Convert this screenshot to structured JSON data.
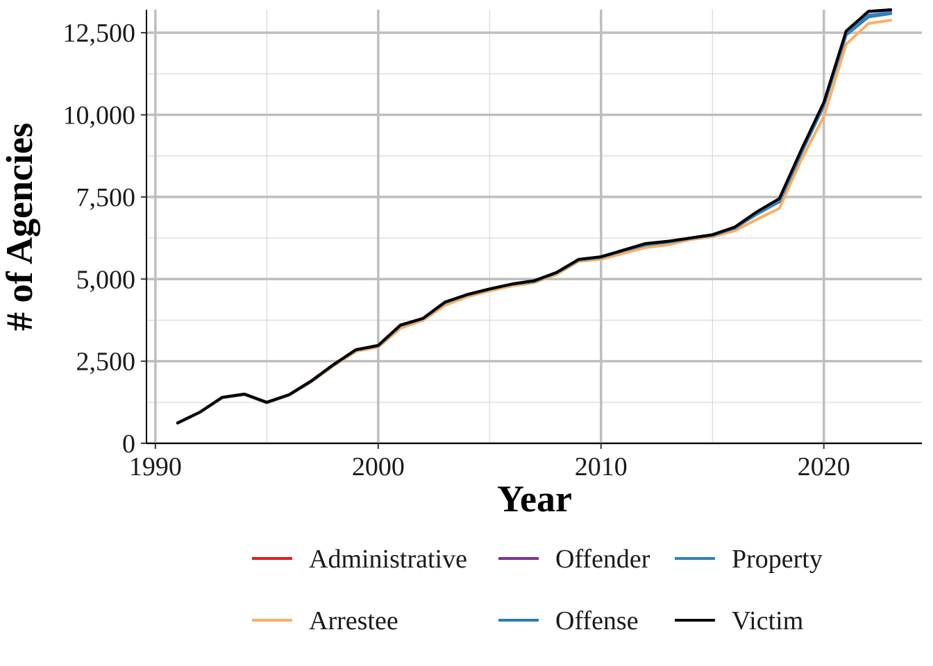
{
  "chart_data": {
    "type": "line",
    "xlabel": "Year",
    "ylabel": "# of Agencies",
    "xlim": [
      1989.6,
      2024.4
    ],
    "ylim": [
      0,
      13200
    ],
    "x_ticks": [
      1990,
      2000,
      2010,
      2020
    ],
    "x_tick_labels": [
      "1990",
      "2000",
      "2010",
      "2020"
    ],
    "y_ticks": [
      0,
      2500,
      5000,
      7500,
      10000,
      12500
    ],
    "y_tick_labels": [
      "0",
      "2,500",
      "5,000",
      "7,500",
      "10,000",
      "12,500"
    ],
    "grid": true,
    "legend_position": "bottom",
    "x": [
      1991,
      1992,
      1993,
      1994,
      1995,
      1996,
      1997,
      1998,
      1999,
      2000,
      2001,
      2002,
      2003,
      2004,
      2005,
      2006,
      2007,
      2008,
      2009,
      2010,
      2011,
      2012,
      2013,
      2014,
      2015,
      2016,
      2017,
      2018,
      2019,
      2020,
      2021,
      2022,
      2023
    ],
    "series": [
      {
        "name": "Administrative",
        "color": "#E41A1C",
        "values": [
          620,
          950,
          1400,
          1500,
          1250,
          1480,
          1900,
          2400,
          2850,
          2980,
          3600,
          3800,
          4300,
          4530,
          4700,
          4850,
          4950,
          5200,
          5600,
          5680,
          5880,
          6080,
          6150,
          6250,
          6350,
          6580,
          7050,
          7450,
          8950,
          10380,
          12550,
          13150,
          13200
        ]
      },
      {
        "name": "Arrestee",
        "color": "#FDAE61",
        "values": [
          610,
          940,
          1380,
          1480,
          1230,
          1460,
          1870,
          2360,
          2800,
          2930,
          3500,
          3740,
          4200,
          4460,
          4640,
          4790,
          4890,
          5140,
          5540,
          5600,
          5780,
          5960,
          6040,
          6200,
          6290,
          6470,
          6820,
          7150,
          8650,
          9950,
          12150,
          12780,
          12880
        ]
      },
      {
        "name": "Offender",
        "color": "#7B3294",
        "values": [
          620,
          950,
          1400,
          1500,
          1250,
          1480,
          1900,
          2400,
          2850,
          2980,
          3600,
          3800,
          4300,
          4530,
          4700,
          4850,
          4950,
          5200,
          5600,
          5680,
          5880,
          6080,
          6150,
          6250,
          6350,
          6580,
          7050,
          7440,
          8950,
          10370,
          12540,
          13140,
          13190
        ]
      },
      {
        "name": "Offense",
        "color": "#2C7BB6",
        "values": [
          615,
          945,
          1390,
          1490,
          1240,
          1470,
          1890,
          2390,
          2840,
          2970,
          3580,
          3790,
          4280,
          4520,
          4690,
          4840,
          4930,
          5190,
          5580,
          5660,
          5860,
          6040,
          6120,
          6240,
          6330,
          6550,
          6980,
          7350,
          8850,
          10280,
          12430,
          12980,
          13080
        ]
      },
      {
        "name": "Property",
        "color": "#3182BD",
        "values": [
          615,
          945,
          1390,
          1490,
          1240,
          1470,
          1890,
          2390,
          2840,
          2970,
          3580,
          3790,
          4280,
          4520,
          4690,
          4840,
          4930,
          5190,
          5580,
          5660,
          5860,
          6040,
          6120,
          6240,
          6330,
          6550,
          6990,
          7380,
          8900,
          10320,
          12470,
          13030,
          13110
        ]
      },
      {
        "name": "Victim",
        "color": "#000000",
        "values": [
          620,
          950,
          1400,
          1500,
          1250,
          1480,
          1900,
          2400,
          2850,
          2980,
          3600,
          3800,
          4300,
          4530,
          4700,
          4850,
          4950,
          5200,
          5600,
          5680,
          5880,
          6080,
          6150,
          6250,
          6350,
          6580,
          7050,
          7450,
          8950,
          10380,
          12550,
          13150,
          13200
        ]
      }
    ],
    "legend_order": [
      "Administrative",
      "Offender",
      "Property",
      "Arrestee",
      "Offense",
      "Victim"
    ]
  }
}
